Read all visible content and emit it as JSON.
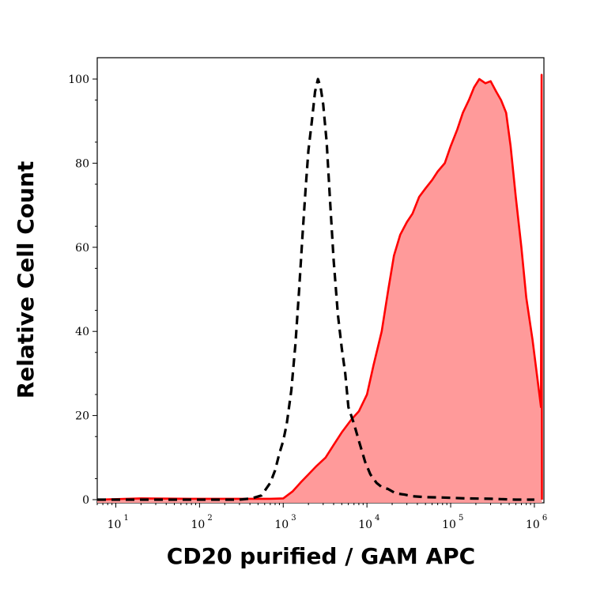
{
  "chart_data": {
    "type": "area",
    "xlabel": "CD20 purified / GAM APC",
    "ylabel": "Relative Cell Count",
    "x_scale": "log",
    "xlim": [
      6,
      1300000
    ],
    "ylim": [
      0,
      105
    ],
    "grid": false,
    "x_ticks": [
      {
        "value": 10,
        "base": "10",
        "exp": "1"
      },
      {
        "value": 100,
        "base": "10",
        "exp": "2"
      },
      {
        "value": 1000,
        "base": "10",
        "exp": "3"
      },
      {
        "value": 10000,
        "base": "10",
        "exp": "4"
      },
      {
        "value": 100000,
        "base": "10",
        "exp": "5"
      },
      {
        "value": 1000000,
        "base": "10",
        "exp": "6"
      }
    ],
    "y_ticks": [
      0,
      20,
      40,
      60,
      80,
      100
    ],
    "series": [
      {
        "style": "filled",
        "color": "#ff0000",
        "fill": "#ff9a9a",
        "x": [
          6,
          20,
          80,
          300,
          700,
          1000,
          1300,
          1600,
          2000,
          2500,
          3200,
          4000,
          5000,
          6500,
          8000,
          10000,
          12000,
          15000,
          18000,
          21000,
          25000,
          30000,
          35000,
          42000,
          50000,
          60000,
          70000,
          85000,
          100000,
          120000,
          140000,
          165000,
          190000,
          220000,
          260000,
          300000,
          350000,
          400000,
          460000,
          520000,
          600000,
          700000,
          800000,
          950000,
          1100000,
          1200000,
          1220000,
          1230000
        ],
        "y": [
          0,
          0.3,
          0.2,
          0.2,
          0.2,
          0.3,
          2,
          4,
          6,
          8,
          10,
          13,
          16,
          19,
          21,
          25,
          32,
          40,
          50,
          58,
          63,
          66,
          68,
          72,
          74,
          76,
          78,
          80,
          84,
          88,
          92,
          95,
          98,
          100,
          99,
          99.5,
          97,
          95,
          92,
          84,
          72,
          60,
          48,
          38,
          28,
          22,
          101,
          0
        ]
      },
      {
        "style": "dashed",
        "color": "#000000",
        "x": [
          6,
          300,
          420,
          550,
          700,
          800,
          900,
          1000,
          1100,
          1250,
          1400,
          1550,
          1700,
          1850,
          2000,
          2200,
          2400,
          2600,
          2800,
          3000,
          3300,
          3600,
          4000,
          4500,
          5000,
          5500,
          6000,
          7000,
          8000,
          9500,
          11000,
          13000,
          15000,
          18000,
          22000,
          28000,
          35000,
          50000,
          80000,
          150000,
          300000,
          600000,
          1000000
        ],
        "y": [
          0,
          0,
          0.3,
          1,
          4,
          7,
          11,
          14,
          18,
          26,
          37,
          50,
          63,
          74,
          83,
          90,
          97,
          100,
          98,
          94,
          85,
          72,
          57,
          44,
          36,
          30,
          22,
          18,
          14,
          9,
          6,
          4,
          3,
          2.5,
          1.5,
          1.2,
          0.8,
          0.6,
          0.5,
          0.3,
          0.2,
          0,
          0
        ]
      }
    ]
  }
}
